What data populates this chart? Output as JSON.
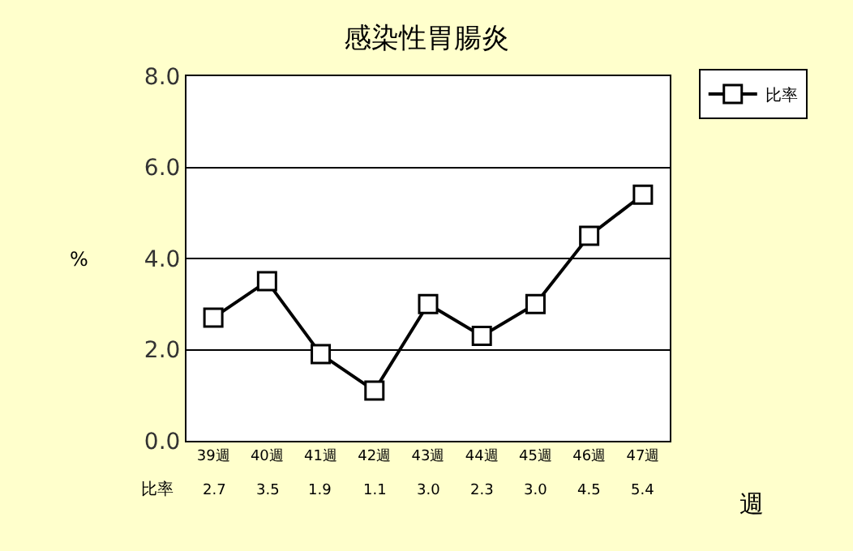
{
  "chart_data": {
    "type": "line",
    "title": "感染性胃腸炎",
    "xlabel": "週",
    "ylabel": "%",
    "categories": [
      "39週",
      "40週",
      "41週",
      "42週",
      "43週",
      "44週",
      "45週",
      "46週",
      "47週"
    ],
    "series": [
      {
        "name": "比率",
        "color": "#000000",
        "values": [
          2.7,
          3.5,
          1.9,
          1.1,
          3.0,
          2.3,
          3.0,
          4.5,
          5.4
        ],
        "value_labels": [
          "2.7",
          "3.5",
          "1.9",
          "1.1",
          "3.0",
          "2.3",
          "3.0",
          "4.5",
          "5.4"
        ]
      }
    ],
    "ylim": [
      0,
      8
    ],
    "yticks": [
      {
        "value": 0,
        "label": "0.0"
      },
      {
        "value": 2,
        "label": "2.0"
      },
      {
        "value": 4,
        "label": "4.0"
      },
      {
        "value": 6,
        "label": "6.0"
      },
      {
        "value": 8,
        "label": "8.0"
      }
    ],
    "grid": "y",
    "legend": "top right",
    "marker": "square",
    "line_style": "solid"
  }
}
